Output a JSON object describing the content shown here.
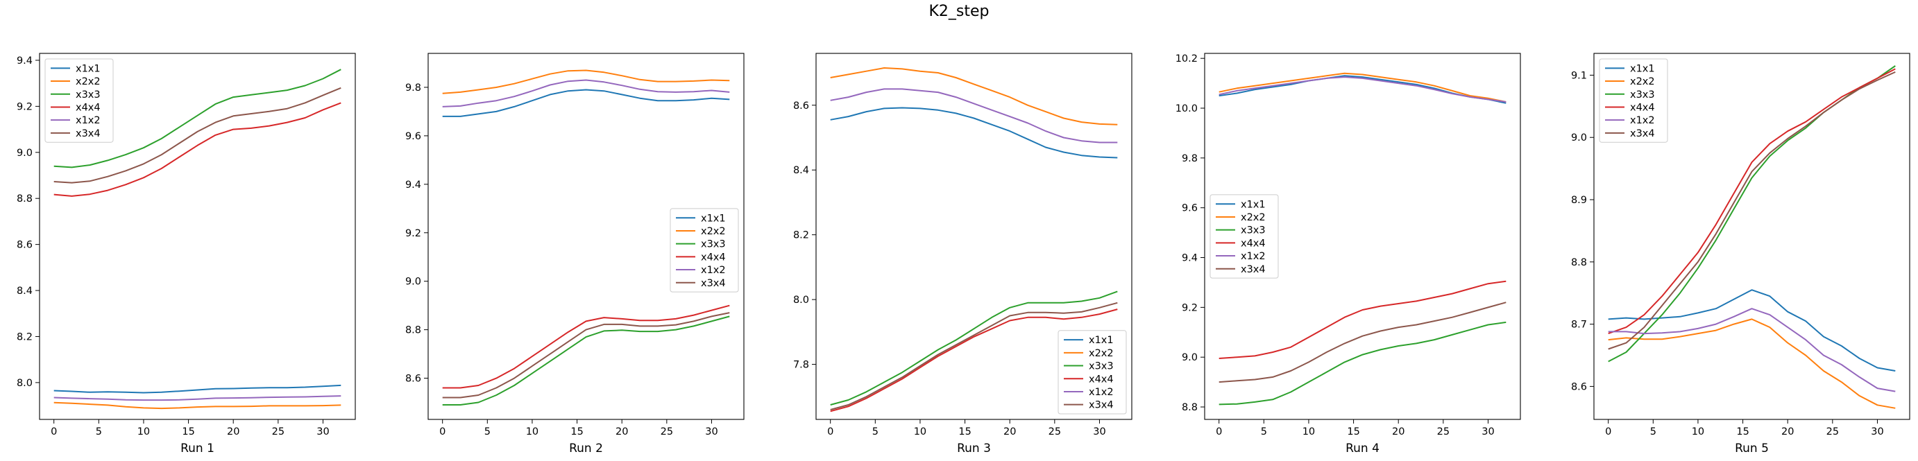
{
  "title": "K2_step",
  "colors": {
    "x1x1": "#1f77b4",
    "x2x2": "#ff7f0e",
    "x3x3": "#2ca02c",
    "x4x4": "#d62728",
    "x1x2": "#9467bd",
    "x3x4": "#8c564b"
  },
  "chart_data": [
    {
      "type": "line",
      "xlabel": "Run 1",
      "xlim": [
        -1.6,
        33.6
      ],
      "ylim": [
        7.84,
        9.43
      ],
      "xticks": [
        0,
        5,
        10,
        15,
        20,
        25,
        30
      ],
      "yticks": [
        8.0,
        8.2,
        8.4,
        8.6,
        8.8,
        9.0,
        9.2,
        9.4
      ],
      "ytick_labels": [
        "8.0",
        "8.2",
        "8.4",
        "8.6",
        "8.8",
        "9.0",
        "9.2",
        "9.4"
      ],
      "legend": "upper-left",
      "x": [
        0,
        2,
        4,
        6,
        8,
        10,
        12,
        14,
        16,
        18,
        20,
        22,
        24,
        26,
        28,
        30,
        32
      ],
      "series": [
        {
          "name": "x1x1",
          "values": [
            7.965,
            7.962,
            7.958,
            7.96,
            7.958,
            7.956,
            7.958,
            7.963,
            7.968,
            7.973,
            7.974,
            7.976,
            7.978,
            7.978,
            7.98,
            7.984,
            7.988
          ]
        },
        {
          "name": "x2x2",
          "values": [
            7.913,
            7.91,
            7.906,
            7.902,
            7.895,
            7.89,
            7.888,
            7.89,
            7.894,
            7.896,
            7.896,
            7.897,
            7.899,
            7.899,
            7.899,
            7.9,
            7.902
          ]
        },
        {
          "name": "x3x3",
          "values": [
            8.94,
            8.935,
            8.945,
            8.965,
            8.99,
            9.02,
            9.06,
            9.11,
            9.16,
            9.21,
            9.24,
            9.25,
            9.26,
            9.27,
            9.29,
            9.32,
            9.36
          ]
        },
        {
          "name": "x4x4",
          "values": [
            8.817,
            8.81,
            8.818,
            8.835,
            8.86,
            8.89,
            8.93,
            8.98,
            9.03,
            9.075,
            9.1,
            9.105,
            9.115,
            9.13,
            9.15,
            9.185,
            9.215
          ]
        },
        {
          "name": "x1x2",
          "values": [
            7.935,
            7.932,
            7.93,
            7.928,
            7.925,
            7.924,
            7.924,
            7.925,
            7.928,
            7.932,
            7.933,
            7.934,
            7.936,
            7.937,
            7.938,
            7.94,
            7.942
          ]
        },
        {
          "name": "x3x4",
          "values": [
            8.873,
            8.868,
            8.875,
            8.895,
            8.92,
            8.95,
            8.99,
            9.04,
            9.09,
            9.13,
            9.158,
            9.168,
            9.178,
            9.19,
            9.215,
            9.248,
            9.28
          ]
        }
      ]
    },
    {
      "type": "line",
      "xlabel": "Run 2",
      "xlim": [
        -1.6,
        33.6
      ],
      "ylim": [
        8.43,
        9.94
      ],
      "xticks": [
        0,
        5,
        10,
        15,
        20,
        25,
        30
      ],
      "yticks": [
        8.6,
        8.8,
        9.0,
        9.2,
        9.4,
        9.6,
        9.8
      ],
      "ytick_labels": [
        "8.6",
        "8.8",
        "9.0",
        "9.2",
        "9.4",
        "9.6",
        "9.8"
      ],
      "legend": "center-right",
      "x": [
        0,
        2,
        4,
        6,
        8,
        10,
        12,
        14,
        16,
        18,
        20,
        22,
        24,
        26,
        28,
        30,
        32
      ],
      "series": [
        {
          "name": "x1x1",
          "values": [
            9.68,
            9.68,
            9.69,
            9.7,
            9.72,
            9.745,
            9.77,
            9.785,
            9.79,
            9.785,
            9.77,
            9.755,
            9.745,
            9.745,
            9.748,
            9.755,
            9.75
          ]
        },
        {
          "name": "x2x2",
          "values": [
            9.775,
            9.78,
            9.79,
            9.8,
            9.815,
            9.835,
            9.855,
            9.868,
            9.87,
            9.862,
            9.848,
            9.832,
            9.824,
            9.824,
            9.826,
            9.83,
            9.828
          ]
        },
        {
          "name": "x3x3",
          "values": [
            8.49,
            8.49,
            8.5,
            8.53,
            8.57,
            8.62,
            8.67,
            8.72,
            8.77,
            8.795,
            8.798,
            8.793,
            8.793,
            8.8,
            8.815,
            8.835,
            8.855
          ]
        },
        {
          "name": "x4x4",
          "values": [
            8.56,
            8.56,
            8.57,
            8.6,
            8.64,
            8.69,
            8.74,
            8.79,
            8.835,
            8.85,
            8.845,
            8.838,
            8.838,
            8.845,
            8.86,
            8.88,
            8.9
          ]
        },
        {
          "name": "x1x2",
          "values": [
            9.72,
            9.723,
            9.735,
            9.745,
            9.762,
            9.785,
            9.81,
            9.825,
            9.83,
            9.822,
            9.808,
            9.792,
            9.782,
            9.78,
            9.782,
            9.787,
            9.78
          ]
        },
        {
          "name": "x3x4",
          "values": [
            8.52,
            8.52,
            8.53,
            8.56,
            8.6,
            8.65,
            8.7,
            8.75,
            8.8,
            8.822,
            8.822,
            8.815,
            8.815,
            8.82,
            8.835,
            8.855,
            8.87
          ]
        }
      ]
    },
    {
      "type": "line",
      "xlabel": "Run 3",
      "xlim": [
        -1.6,
        33.6
      ],
      "ylim": [
        7.63,
        8.76
      ],
      "xticks": [
        0,
        5,
        10,
        15,
        20,
        25,
        30
      ],
      "yticks": [
        7.8,
        8.0,
        8.2,
        8.4,
        8.6
      ],
      "ytick_labels": [
        "7.8",
        "8.0",
        "8.2",
        "8.4",
        "8.6"
      ],
      "legend": "lower-right",
      "x": [
        0,
        2,
        4,
        6,
        8,
        10,
        12,
        14,
        16,
        18,
        20,
        22,
        24,
        26,
        28,
        30,
        32
      ],
      "series": [
        {
          "name": "x1x1",
          "values": [
            8.555,
            8.565,
            8.58,
            8.59,
            8.592,
            8.59,
            8.585,
            8.575,
            8.56,
            8.54,
            8.52,
            8.495,
            8.47,
            8.455,
            8.445,
            8.44,
            8.438
          ]
        },
        {
          "name": "x2x2",
          "values": [
            8.685,
            8.695,
            8.705,
            8.715,
            8.712,
            8.705,
            8.7,
            8.685,
            8.665,
            8.645,
            8.625,
            8.6,
            8.58,
            8.56,
            8.548,
            8.542,
            8.54
          ]
        },
        {
          "name": "x3x3",
          "values": [
            7.675,
            7.69,
            7.715,
            7.745,
            7.775,
            7.81,
            7.845,
            7.875,
            7.91,
            7.945,
            7.975,
            7.99,
            7.99,
            7.99,
            7.995,
            8.005,
            8.025
          ]
        },
        {
          "name": "x4x4",
          "values": [
            7.655,
            7.67,
            7.695,
            7.725,
            7.755,
            7.79,
            7.825,
            7.855,
            7.885,
            7.91,
            7.935,
            7.945,
            7.945,
            7.94,
            7.945,
            7.955,
            7.97
          ]
        },
        {
          "name": "x1x2",
          "values": [
            8.615,
            8.625,
            8.64,
            8.65,
            8.65,
            8.645,
            8.64,
            8.625,
            8.605,
            8.585,
            8.565,
            8.545,
            8.52,
            8.5,
            8.49,
            8.485,
            8.485
          ]
        },
        {
          "name": "x3x4",
          "values": [
            7.66,
            7.675,
            7.7,
            7.73,
            7.76,
            7.795,
            7.83,
            7.86,
            7.89,
            7.92,
            7.95,
            7.96,
            7.96,
            7.958,
            7.962,
            7.975,
            7.99
          ]
        }
      ]
    },
    {
      "type": "line",
      "xlabel": "Run 4",
      "xlim": [
        -1.6,
        33.6
      ],
      "ylim": [
        8.75,
        10.22
      ],
      "xticks": [
        0,
        5,
        10,
        15,
        20,
        25,
        30
      ],
      "yticks": [
        8.8,
        9.0,
        9.2,
        9.4,
        9.6,
        9.8,
        10.0,
        10.2
      ],
      "ytick_labels": [
        "8.8",
        "9.0",
        "9.2",
        "9.4",
        "9.6",
        "9.8",
        "10.0",
        "10.2"
      ],
      "legend": "center-left",
      "x": [
        0,
        2,
        4,
        6,
        8,
        10,
        12,
        14,
        16,
        18,
        20,
        22,
        24,
        26,
        28,
        30,
        32
      ],
      "series": [
        {
          "name": "x1x1",
          "values": [
            10.05,
            10.06,
            10.075,
            10.085,
            10.095,
            10.11,
            10.12,
            10.13,
            10.125,
            10.115,
            10.105,
            10.095,
            10.08,
            10.06,
            10.045,
            10.035,
            10.02
          ]
        },
        {
          "name": "x2x2",
          "values": [
            10.065,
            10.08,
            10.09,
            10.1,
            10.11,
            10.12,
            10.13,
            10.14,
            10.135,
            10.125,
            10.115,
            10.105,
            10.09,
            10.07,
            10.05,
            10.04,
            10.025
          ]
        },
        {
          "name": "x3x3",
          "values": [
            8.81,
            8.812,
            8.82,
            8.83,
            8.86,
            8.9,
            8.94,
            8.98,
            9.01,
            9.03,
            9.045,
            9.055,
            9.07,
            9.09,
            9.11,
            9.13,
            9.14
          ]
        },
        {
          "name": "x4x4",
          "values": [
            8.995,
            9.0,
            9.005,
            9.02,
            9.04,
            9.08,
            9.12,
            9.16,
            9.19,
            9.205,
            9.215,
            9.225,
            9.24,
            9.255,
            9.275,
            9.295,
            9.305
          ]
        },
        {
          "name": "x1x2",
          "values": [
            10.055,
            10.07,
            10.08,
            10.09,
            10.1,
            10.11,
            10.12,
            10.125,
            10.12,
            10.11,
            10.1,
            10.09,
            10.075,
            10.058,
            10.045,
            10.035,
            10.025
          ]
        },
        {
          "name": "x3x4",
          "values": [
            8.9,
            8.905,
            8.91,
            8.92,
            8.945,
            8.98,
            9.02,
            9.055,
            9.085,
            9.105,
            9.12,
            9.13,
            9.145,
            9.16,
            9.18,
            9.2,
            9.22
          ]
        }
      ]
    },
    {
      "type": "line",
      "xlabel": "Run 5",
      "xlim": [
        -1.6,
        33.6
      ],
      "ylim": [
        8.547,
        9.135
      ],
      "xticks": [
        0,
        5,
        10,
        15,
        20,
        25,
        30
      ],
      "yticks": [
        8.6,
        8.7,
        8.8,
        8.9,
        9.0,
        9.1
      ],
      "ytick_labels": [
        "8.6",
        "8.7",
        "8.8",
        "8.9",
        "9.0",
        "9.1"
      ],
      "legend": "upper-left",
      "x": [
        0,
        2,
        4,
        6,
        8,
        10,
        12,
        14,
        16,
        18,
        20,
        22,
        24,
        26,
        28,
        30,
        32
      ],
      "series": [
        {
          "name": "x1x1",
          "values": [
            8.708,
            8.71,
            8.708,
            8.71,
            8.712,
            8.718,
            8.725,
            8.74,
            8.755,
            8.745,
            8.72,
            8.705,
            8.68,
            8.665,
            8.645,
            8.63,
            8.625
          ]
        },
        {
          "name": "x2x2",
          "values": [
            8.675,
            8.678,
            8.676,
            8.676,
            8.68,
            8.685,
            8.69,
            8.7,
            8.708,
            8.695,
            8.67,
            8.65,
            8.625,
            8.607,
            8.585,
            8.57,
            8.565
          ]
        },
        {
          "name": "x3x3",
          "values": [
            8.64,
            8.655,
            8.685,
            8.715,
            8.75,
            8.79,
            8.835,
            8.885,
            8.935,
            8.97,
            8.995,
            9.015,
            9.04,
            9.06,
            9.08,
            9.095,
            9.115
          ]
        },
        {
          "name": "x4x4",
          "values": [
            8.685,
            8.695,
            8.715,
            8.745,
            8.78,
            8.815,
            8.86,
            8.91,
            8.96,
            8.99,
            9.01,
            9.025,
            9.045,
            9.065,
            9.08,
            9.095,
            9.11
          ]
        },
        {
          "name": "x1x2",
          "values": [
            8.688,
            8.688,
            8.685,
            8.686,
            8.688,
            8.693,
            8.7,
            8.712,
            8.725,
            8.715,
            8.695,
            8.675,
            8.65,
            8.635,
            8.615,
            8.597,
            8.592
          ]
        },
        {
          "name": "x3x4",
          "values": [
            8.66,
            8.67,
            8.695,
            8.73,
            8.765,
            8.8,
            8.845,
            8.895,
            8.945,
            8.975,
            8.998,
            9.018,
            9.04,
            9.06,
            9.078,
            9.092,
            9.105
          ]
        }
      ]
    }
  ]
}
